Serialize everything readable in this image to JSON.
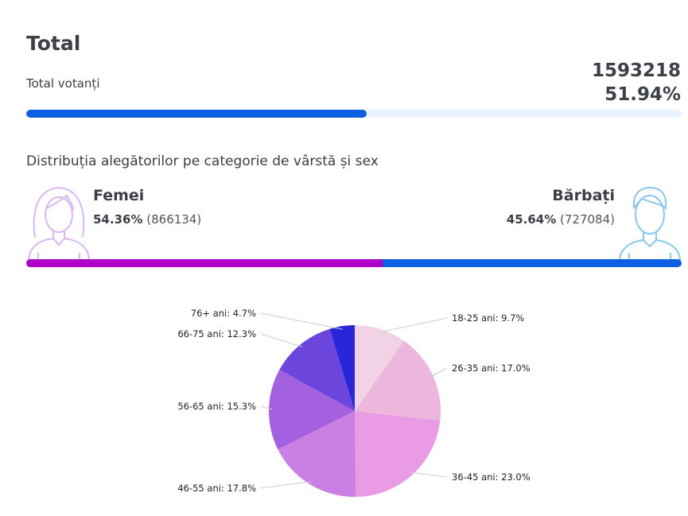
{
  "title": "Total",
  "total": {
    "label": "Total votanți",
    "count": "1593218",
    "percent": "51.94%",
    "fill": 0.5194
  },
  "distribution": {
    "title": "Distribuția alegătorilor pe categorie de vârstă și sex",
    "female": {
      "label": "Femei",
      "percent": "54.36%",
      "count": "(866134)",
      "fill": 0.5436,
      "color": "#b000c8"
    },
    "male": {
      "label": "Bărbați",
      "percent": "45.64%",
      "count": "(727084)",
      "color": "#0b5fe0"
    }
  },
  "chart_data": {
    "type": "pie",
    "categories": [
      "18-25 ani",
      "26-35 ani",
      "36-45 ani",
      "46-55 ani",
      "56-65 ani",
      "66-75 ani",
      "76+ ani"
    ],
    "values": [
      9.7,
      17.0,
      23.0,
      17.8,
      15.3,
      12.3,
      4.7
    ],
    "labels": [
      "18-25 ani: 9.7%",
      "26-35 ani: 17.0%",
      "36-45 ani: 23.0%",
      "46-55 ani: 17.8%",
      "56-65 ani: 15.3%",
      "66-75 ani: 12.3%",
      "76+ ani: 4.7%"
    ],
    "colors": [
      "#f2d3e6",
      "#edb6dd",
      "#e99be4",
      "#c97fe3",
      "#a461df",
      "#6b45dc",
      "#2727d9"
    ]
  }
}
